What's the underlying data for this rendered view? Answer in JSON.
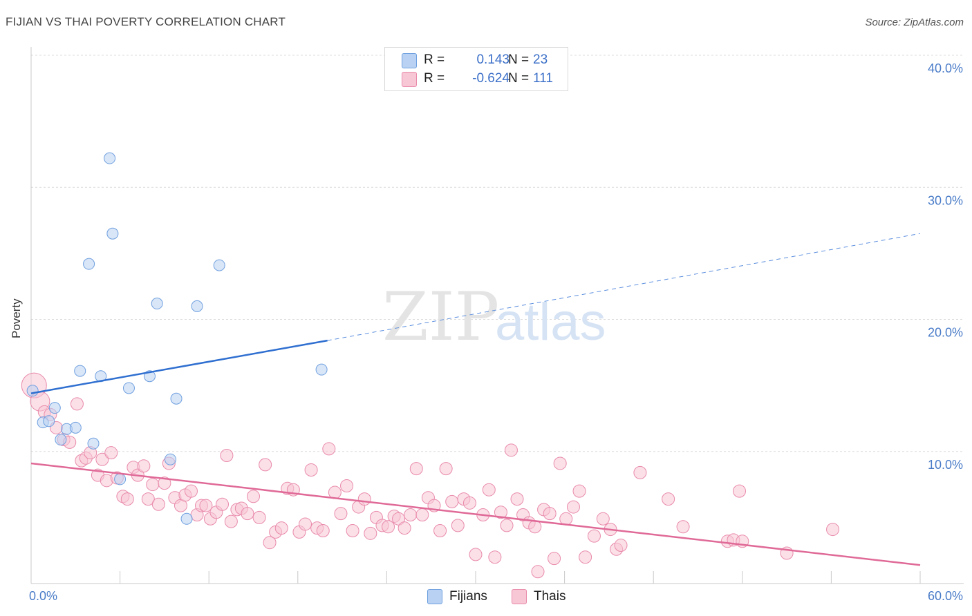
{
  "title": "FIJIAN VS THAI POVERTY CORRELATION CHART",
  "source": "Source: ZipAtlas.com",
  "watermark": {
    "zip": "ZIP",
    "atlas": "atlas"
  },
  "legend": {
    "rows": [
      {
        "r_label": "R =",
        "r_value": "0.143",
        "n_label": "N =",
        "n_value": "23",
        "fill": "#b9d2f3",
        "stroke": "#6e9fdf"
      },
      {
        "r_label": "R =",
        "r_value": "-0.624",
        "n_label": "N =",
        "n_value": "111",
        "fill": "#f8c7d6",
        "stroke": "#e98aaa"
      }
    ]
  },
  "bottom_legend": [
    {
      "label": "Fijians",
      "fill": "#b9d2f3",
      "stroke": "#6e9fdf"
    },
    {
      "label": "Thais",
      "fill": "#f8c7d6",
      "stroke": "#e98aaa"
    }
  ],
  "chart_data": {
    "type": "scatter",
    "xlabel": "",
    "ylabel": "Poverty",
    "xlim": [
      0,
      60
    ],
    "ylim": [
      0,
      40
    ],
    "x_tick_labels": [
      {
        "value": 0,
        "label": "0.0%"
      },
      {
        "value": 60,
        "label": "60.0%"
      }
    ],
    "y_tick_labels": [
      {
        "value": 10,
        "label": "10.0%"
      },
      {
        "value": 20,
        "label": "20.0%"
      },
      {
        "value": 30,
        "label": "30.0%"
      },
      {
        "value": 40,
        "label": "40.0%"
      }
    ],
    "grid": "horizontal dashed",
    "series": [
      {
        "name": "Fijians",
        "color": "#6e9fdf",
        "fill": "#b9d2f3",
        "trend": {
          "x": [
            0,
            20
          ],
          "y": [
            14.4,
            18.4
          ],
          "color": "#2f6fd0",
          "dashed_to": [
            60,
            26.5
          ]
        },
        "points": [
          [
            0.1,
            14.6
          ],
          [
            0.8,
            12.2
          ],
          [
            1.2,
            12.3
          ],
          [
            1.6,
            13.3
          ],
          [
            2.0,
            10.9
          ],
          [
            2.4,
            11.7
          ],
          [
            3.0,
            11.8
          ],
          [
            3.3,
            16.1
          ],
          [
            3.9,
            24.2
          ],
          [
            4.2,
            10.6
          ],
          [
            4.7,
            15.7
          ],
          [
            5.3,
            32.2
          ],
          [
            5.5,
            26.5
          ],
          [
            6.0,
            7.9
          ],
          [
            6.6,
            14.8
          ],
          [
            8.0,
            15.7
          ],
          [
            8.5,
            21.2
          ],
          [
            9.4,
            9.4
          ],
          [
            9.8,
            14.0
          ],
          [
            10.5,
            4.9
          ],
          [
            11.2,
            21.0
          ],
          [
            12.7,
            24.1
          ],
          [
            19.6,
            16.2
          ]
        ]
      },
      {
        "name": "Thais",
        "color": "#e98aaa",
        "fill": "#f8c7d6",
        "trend": {
          "x": [
            0,
            60
          ],
          "y": [
            9.1,
            1.4
          ],
          "color": "#e06a97"
        },
        "points": [
          [
            0.2,
            15.0
          ],
          [
            0.6,
            13.8
          ],
          [
            0.9,
            13.0
          ],
          [
            1.3,
            12.8
          ],
          [
            1.7,
            11.8
          ],
          [
            2.2,
            10.9
          ],
          [
            2.6,
            10.7
          ],
          [
            3.1,
            13.6
          ],
          [
            3.4,
            9.3
          ],
          [
            3.7,
            9.5
          ],
          [
            4.0,
            9.9
          ],
          [
            4.5,
            8.2
          ],
          [
            4.8,
            9.4
          ],
          [
            5.1,
            7.8
          ],
          [
            5.4,
            9.9
          ],
          [
            5.8,
            8.0
          ],
          [
            6.2,
            6.6
          ],
          [
            6.5,
            6.4
          ],
          [
            6.9,
            8.8
          ],
          [
            7.2,
            8.2
          ],
          [
            7.6,
            8.9
          ],
          [
            7.9,
            6.4
          ],
          [
            8.2,
            7.5
          ],
          [
            8.6,
            6.0
          ],
          [
            9.0,
            7.6
          ],
          [
            9.3,
            9.1
          ],
          [
            9.7,
            6.5
          ],
          [
            10.1,
            5.9
          ],
          [
            10.4,
            6.7
          ],
          [
            10.8,
            7.0
          ],
          [
            11.2,
            5.2
          ],
          [
            11.5,
            5.9
          ],
          [
            11.8,
            5.9
          ],
          [
            12.1,
            4.9
          ],
          [
            12.5,
            5.4
          ],
          [
            12.9,
            6.0
          ],
          [
            13.2,
            9.7
          ],
          [
            13.5,
            4.7
          ],
          [
            13.9,
            5.6
          ],
          [
            14.2,
            5.7
          ],
          [
            14.6,
            5.3
          ],
          [
            15.0,
            6.6
          ],
          [
            15.4,
            5.0
          ],
          [
            15.8,
            9.0
          ],
          [
            16.1,
            3.1
          ],
          [
            16.5,
            3.9
          ],
          [
            16.9,
            4.2
          ],
          [
            17.3,
            7.2
          ],
          [
            17.7,
            7.1
          ],
          [
            18.1,
            3.9
          ],
          [
            18.5,
            4.5
          ],
          [
            18.9,
            8.6
          ],
          [
            19.3,
            4.2
          ],
          [
            19.7,
            4.0
          ],
          [
            20.1,
            10.2
          ],
          [
            20.5,
            6.9
          ],
          [
            20.9,
            5.3
          ],
          [
            21.3,
            7.4
          ],
          [
            21.7,
            4.0
          ],
          [
            22.1,
            5.8
          ],
          [
            22.5,
            6.4
          ],
          [
            22.9,
            3.8
          ],
          [
            23.3,
            5.0
          ],
          [
            23.7,
            4.4
          ],
          [
            24.1,
            4.3
          ],
          [
            24.5,
            5.1
          ],
          [
            24.8,
            4.9
          ],
          [
            25.2,
            4.2
          ],
          [
            25.6,
            5.2
          ],
          [
            26.0,
            8.7
          ],
          [
            26.4,
            5.2
          ],
          [
            26.8,
            6.5
          ],
          [
            27.2,
            5.9
          ],
          [
            27.6,
            4.0
          ],
          [
            28.0,
            8.7
          ],
          [
            28.4,
            6.2
          ],
          [
            28.8,
            4.4
          ],
          [
            29.2,
            6.4
          ],
          [
            29.6,
            6.1
          ],
          [
            30.0,
            2.2
          ],
          [
            30.5,
            5.2
          ],
          [
            30.9,
            7.1
          ],
          [
            31.3,
            2.0
          ],
          [
            31.7,
            5.4
          ],
          [
            32.1,
            4.4
          ],
          [
            32.4,
            10.1
          ],
          [
            32.8,
            6.4
          ],
          [
            33.2,
            5.2
          ],
          [
            33.6,
            4.6
          ],
          [
            34.0,
            4.3
          ],
          [
            34.2,
            0.9
          ],
          [
            34.6,
            5.6
          ],
          [
            35.0,
            5.3
          ],
          [
            35.3,
            1.9
          ],
          [
            35.7,
            9.1
          ],
          [
            36.1,
            4.9
          ],
          [
            36.6,
            5.8
          ],
          [
            37.0,
            7.0
          ],
          [
            37.4,
            2.0
          ],
          [
            38.0,
            3.6
          ],
          [
            38.6,
            4.9
          ],
          [
            39.1,
            4.1
          ],
          [
            39.5,
            2.6
          ],
          [
            39.8,
            2.9
          ],
          [
            41.1,
            8.4
          ],
          [
            43.0,
            6.4
          ],
          [
            44.0,
            4.3
          ],
          [
            47.0,
            3.2
          ],
          [
            47.4,
            3.3
          ],
          [
            48.0,
            3.2
          ],
          [
            47.8,
            7.0
          ],
          [
            51.0,
            2.3
          ],
          [
            54.1,
            4.1
          ]
        ]
      }
    ]
  }
}
